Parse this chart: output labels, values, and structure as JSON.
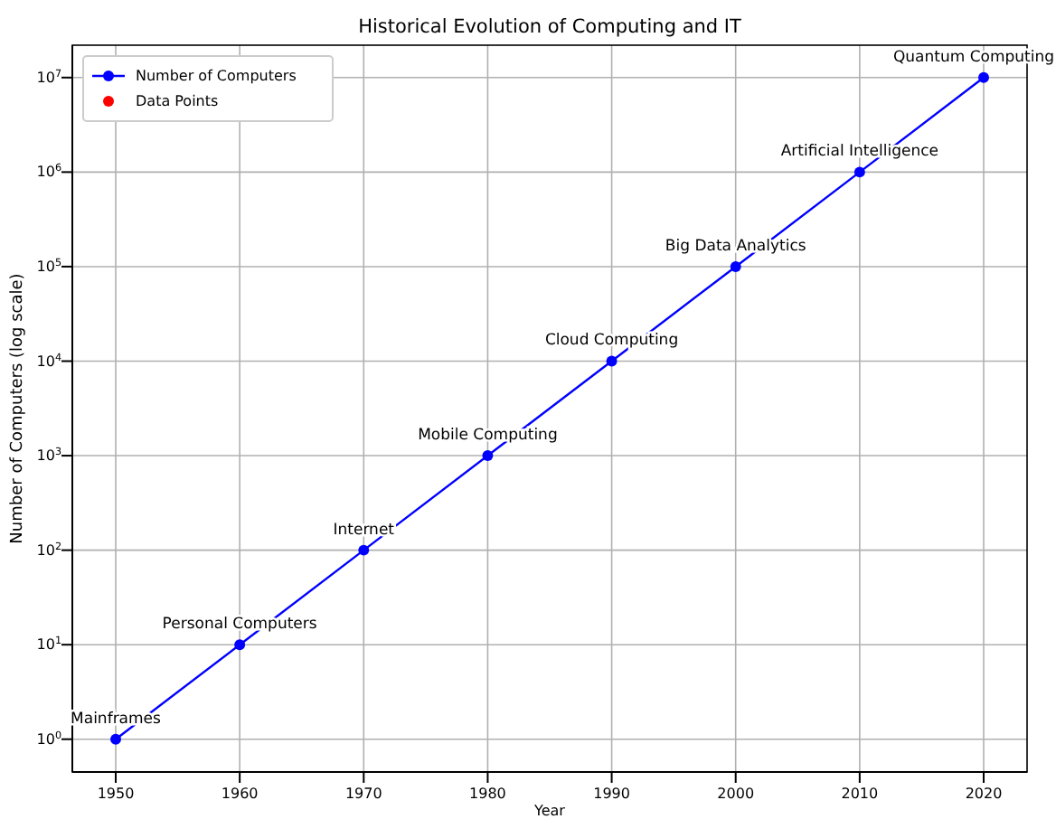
{
  "chart_data": {
    "type": "line",
    "title": "Historical Evolution of Computing and IT",
    "xlabel": "Year",
    "ylabel": "Number of Computers (log scale)",
    "x": [
      1950,
      1960,
      1970,
      1980,
      1990,
      2000,
      2010,
      2020
    ],
    "series": [
      {
        "name": "Number of Computers",
        "color": "#0000ff",
        "marker": "circle",
        "values": [
          1,
          10,
          100,
          1000,
          10000,
          100000,
          1000000,
          10000000
        ]
      },
      {
        "name": "Data Points",
        "type": "scatter",
        "color": "#ff0000",
        "marker": "circle",
        "values": [
          null,
          null,
          null,
          null,
          null,
          null,
          null,
          null
        ]
      }
    ],
    "xlim": [
      1946.5,
      2023.5
    ],
    "xticks": [
      1950,
      1960,
      1970,
      1980,
      1990,
      2000,
      2010,
      2020
    ],
    "ylim": [
      0.45,
      22000000
    ],
    "yticks": [
      {
        "value": 1,
        "label": "10$^{0}$"
      },
      {
        "value": 10,
        "label": "10$^{1}$"
      },
      {
        "value": 100,
        "label": "10$^{2}$"
      },
      {
        "value": 1000,
        "label": "10$^{3}$"
      },
      {
        "value": 10000,
        "label": "10$^{4}$"
      },
      {
        "value": 100000,
        "label": "10$^{5}$"
      },
      {
        "value": 1000000,
        "label": "10$^{6}$"
      },
      {
        "value": 10000000,
        "label": "10$^{7}$"
      }
    ],
    "log": "y",
    "grid": true,
    "legend": "top left",
    "line_style": "solid",
    "annotations": [
      {
        "text": "Mainframes",
        "x": 1950,
        "y": 1
      },
      {
        "text": "Personal Computers",
        "x": 1960,
        "y": 10
      },
      {
        "text": "Internet",
        "x": 1970,
        "y": 100
      },
      {
        "text": "Mobile Computing",
        "x": 1980,
        "y": 1000
      },
      {
        "text": "Cloud Computing",
        "x": 1990,
        "y": 10000
      },
      {
        "text": "Big Data Analytics",
        "x": 2000,
        "y": 100000
      },
      {
        "text": "Artificial Intelligence",
        "x": 2010,
        "y": 1000000
      },
      {
        "text": "Quantum Computing",
        "x": 2020,
        "y": 10000000
      }
    ]
  }
}
